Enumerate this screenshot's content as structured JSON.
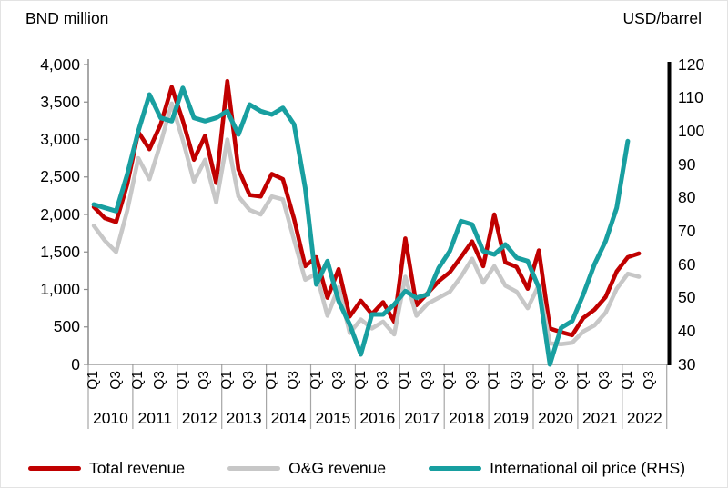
{
  "labels": {
    "left_axis_title": "BND million",
    "right_axis_title": "USD/barrel"
  },
  "legend": {
    "items": [
      {
        "label": "Total revenue",
        "color": "#c00000"
      },
      {
        "label": "O&G revenue",
        "color": "#c7c7c7"
      },
      {
        "label": "International oil price (RHS)",
        "color": "#189fa0"
      }
    ]
  },
  "chart_data": {
    "type": "line",
    "title": "",
    "x_axis": {
      "years": [
        "2010",
        "2011",
        "2012",
        "2013",
        "2014",
        "2015",
        "2016",
        "2017",
        "2018",
        "2019",
        "2020",
        "2021",
        "2022"
      ],
      "quarter_tick_labels": [
        "Q1",
        "Q3"
      ],
      "quarters_per_year": 4
    },
    "left_axis": {
      "title": "BND million",
      "min": 0,
      "max": 4000,
      "tick_step": 500,
      "tick_labels": [
        "4,000",
        "3,500",
        "3,000",
        "2,500",
        "2,000",
        "1,500",
        "1,000",
        "500",
        "0"
      ]
    },
    "right_axis": {
      "title": "USD/barrel",
      "min": 30,
      "max": 120,
      "tick_step": 10,
      "tick_labels": [
        "120",
        "110",
        "100",
        "90",
        "80",
        "70",
        "60",
        "50",
        "40",
        "30"
      ]
    },
    "grid": false,
    "legend_position": "bottom",
    "series": [
      {
        "name": "Total revenue",
        "axis": "left",
        "color": "#c00000",
        "stroke_width": 4.6,
        "values": [
          2100,
          1950,
          1900,
          2400,
          3100,
          2870,
          3200,
          3700,
          3250,
          2730,
          3050,
          2420,
          3780,
          2600,
          2260,
          2240,
          2540,
          2470,
          1940,
          1310,
          1430,
          890,
          1270,
          640,
          850,
          670,
          830,
          570,
          1680,
          790,
          950,
          1110,
          1230,
          1430,
          1640,
          1310,
          2000,
          1360,
          1300,
          1010,
          1520,
          480,
          430,
          390,
          620,
          730,
          900,
          1240,
          1430,
          1480,
          null,
          null
        ]
      },
      {
        "name": "O&G revenue",
        "axis": "left",
        "color": "#c7c7c7",
        "stroke_width": 4.6,
        "values": [
          1850,
          1650,
          1500,
          2050,
          2750,
          2470,
          2950,
          3480,
          2990,
          2440,
          2730,
          2160,
          3000,
          2240,
          2060,
          2000,
          2240,
          2200,
          1660,
          1130,
          1210,
          650,
          1030,
          420,
          600,
          480,
          570,
          400,
          1170,
          650,
          810,
          890,
          970,
          1170,
          1410,
          1090,
          1310,
          1050,
          970,
          750,
          1060,
          280,
          270,
          290,
          440,
          520,
          690,
          1010,
          1210,
          1170,
          null,
          null
        ]
      },
      {
        "name": "International oil price (RHS)",
        "axis": "right",
        "color": "#189fa0",
        "stroke_width": 5,
        "values": [
          78,
          77,
          76,
          87,
          100,
          111,
          104,
          103,
          113,
          104,
          103,
          104,
          106,
          99,
          108,
          106,
          105,
          107,
          102,
          83,
          54,
          61,
          49,
          42,
          33,
          45,
          45,
          48,
          52,
          50,
          51,
          59,
          64,
          73,
          72,
          64,
          63,
          66,
          62,
          61,
          53,
          30,
          41,
          43,
          51,
          60,
          67,
          77,
          97,
          null,
          null,
          null
        ]
      }
    ]
  }
}
